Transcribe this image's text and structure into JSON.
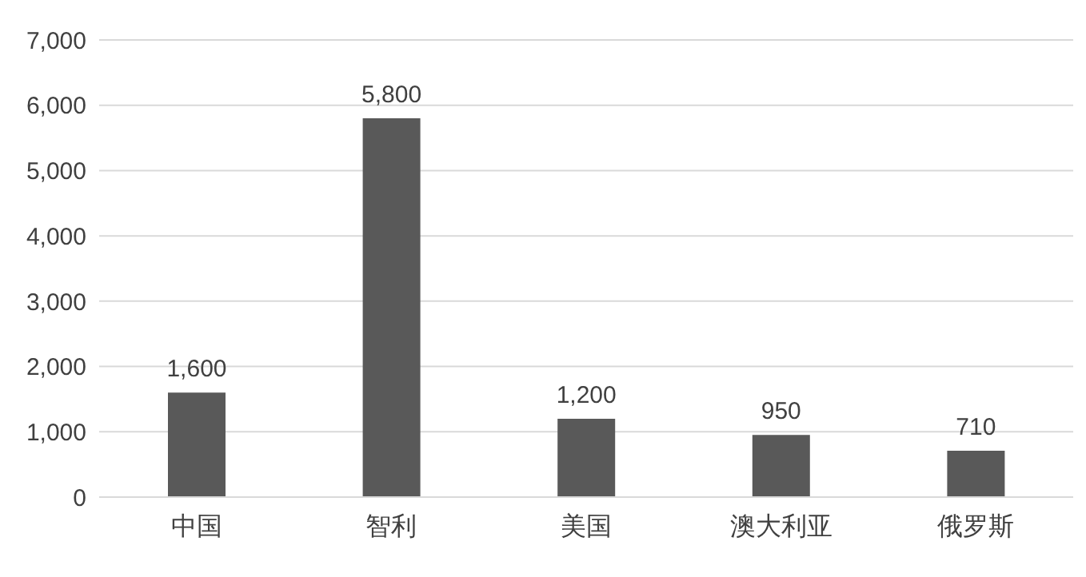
{
  "chart_data": {
    "type": "bar",
    "categories": [
      "中国",
      "智利",
      "美国",
      "澳大利亚",
      "俄罗斯"
    ],
    "values": [
      1600,
      5800,
      1200,
      950,
      710
    ],
    "value_labels": [
      "1,600",
      "5,800",
      "1,200",
      "950",
      "710"
    ],
    "color": "#595959",
    "ylim": [
      0,
      7000
    ],
    "yticks": [
      0,
      {
        "value": 1000,
        "label": "1,000"
      },
      {
        "value": 2000,
        "label": "2,000"
      },
      {
        "value": 3000,
        "label": "3,000"
      },
      {
        "value": 4000,
        "label": "4,000"
      },
      {
        "value": 5000,
        "label": "5,000"
      },
      {
        "value": 6000,
        "label": "6,000"
      },
      {
        "value": 7000,
        "label": "7,000"
      }
    ],
    "grid": "y"
  }
}
